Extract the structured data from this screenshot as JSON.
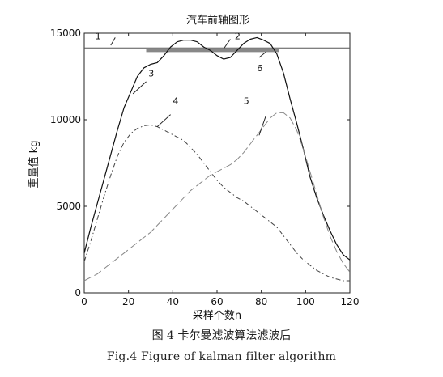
{
  "chart_data": {
    "type": "line",
    "title": "汽车前轴图形",
    "xlabel": "采样个数n",
    "ylabel": "重量值 kg",
    "xlim": [
      0,
      120
    ],
    "ylim": [
      0,
      15000
    ],
    "xticks": [
      0,
      20,
      40,
      60,
      80,
      100,
      120
    ],
    "yticks": [
      0,
      5000,
      10000,
      15000
    ],
    "grid": false,
    "legend": "none",
    "series": [
      {
        "label": "1",
        "style": "solid-thin",
        "color": "#555555",
        "x": [
          0,
          120
        ],
        "y": [
          14150,
          14150
        ],
        "label_at": [
          5,
          14650
        ],
        "leader": [
          [
            12,
            14300
          ],
          [
            14,
            14750
          ]
        ]
      },
      {
        "label": "2",
        "style": "solid-thick",
        "color": "#888888",
        "x": [
          28,
          88
        ],
        "y": [
          14000,
          14000
        ],
        "label_at": [
          68,
          14650
        ],
        "leader": [
          [
            63,
            14100
          ],
          [
            66,
            14650
          ]
        ]
      },
      {
        "label": "3",
        "style": "solid",
        "color": "#111111",
        "x": [
          0,
          3,
          6,
          9,
          12,
          15,
          18,
          21,
          24,
          27,
          30,
          33,
          36,
          39,
          42,
          45,
          48,
          51,
          54,
          57,
          60,
          63,
          66,
          69,
          72,
          75,
          78,
          81,
          84,
          87,
          90,
          93,
          96,
          99,
          102,
          105,
          108,
          111,
          114,
          117,
          120
        ],
        "y": [
          2300,
          3800,
          5200,
          6600,
          8000,
          9400,
          10700,
          11600,
          12500,
          13000,
          13200,
          13300,
          13700,
          14200,
          14500,
          14600,
          14600,
          14500,
          14200,
          14000,
          13700,
          13500,
          13600,
          14000,
          14400,
          14650,
          14750,
          14600,
          14400,
          13800,
          12700,
          11200,
          9800,
          8300,
          6700,
          5500,
          4500,
          3600,
          2800,
          2200,
          1900
        ],
        "label_at": [
          29,
          12500
        ],
        "leader": [
          [
            22,
            11500
          ],
          [
            28,
            12200
          ]
        ]
      },
      {
        "label": "4",
        "style": "dash-dot",
        "color": "#444444",
        "x": [
          0,
          3,
          6,
          9,
          12,
          15,
          18,
          21,
          24,
          27,
          30,
          33,
          36,
          39,
          42,
          45,
          48,
          51,
          54,
          57,
          60,
          63,
          66,
          69,
          72,
          75,
          78,
          81,
          84,
          87,
          90,
          93,
          96,
          99,
          102,
          105,
          108,
          111,
          114,
          117,
          120
        ],
        "y": [
          1800,
          3000,
          4300,
          5600,
          6800,
          7900,
          8700,
          9200,
          9500,
          9650,
          9700,
          9600,
          9400,
          9200,
          9000,
          8800,
          8400,
          8000,
          7500,
          7000,
          6500,
          6100,
          5800,
          5500,
          5300,
          5000,
          4700,
          4400,
          4100,
          3800,
          3300,
          2800,
          2300,
          1900,
          1600,
          1300,
          1100,
          900,
          800,
          700,
          700
        ],
        "label_at": [
          40,
          10900
        ],
        "leader": [
          [
            33,
            9600
          ],
          [
            39,
            10300
          ]
        ]
      },
      {
        "label": "5",
        "style": "long-dash",
        "color": "#888888",
        "x": [
          0,
          3,
          6,
          9,
          12,
          15,
          18,
          21,
          24,
          27,
          30,
          33,
          36,
          39,
          42,
          45,
          48,
          51,
          54,
          57,
          60,
          63,
          66,
          69,
          72,
          75,
          78,
          81,
          84,
          87,
          90,
          93,
          96,
          99,
          102,
          105,
          108,
          111,
          114,
          117,
          120
        ],
        "y": [
          700,
          900,
          1100,
          1400,
          1700,
          2000,
          2300,
          2600,
          2900,
          3200,
          3500,
          3900,
          4300,
          4700,
          5100,
          5500,
          5900,
          6200,
          6500,
          6800,
          7000,
          7200,
          7400,
          7700,
          8100,
          8600,
          9100,
          9600,
          10100,
          10400,
          10400,
          10100,
          9400,
          8300,
          7000,
          5700,
          4400,
          3300,
          2400,
          1700,
          1200
        ],
        "label_at": [
          72,
          10900
        ],
        "leader": [
          [
            79,
            9100
          ],
          [
            82,
            10200
          ]
        ]
      },
      {
        "label": "6",
        "style": "none",
        "color": "#111111",
        "x": [],
        "y": [],
        "label_at": [
          78,
          12800
        ],
        "leader": [
          [
            79,
            13600
          ],
          [
            82,
            13900
          ]
        ]
      }
    ]
  },
  "caption": {
    "chinese": "图 4 卡尔曼滤波算法滤波后",
    "english": "Fig.4 Figure of kalman filter algorithm"
  }
}
